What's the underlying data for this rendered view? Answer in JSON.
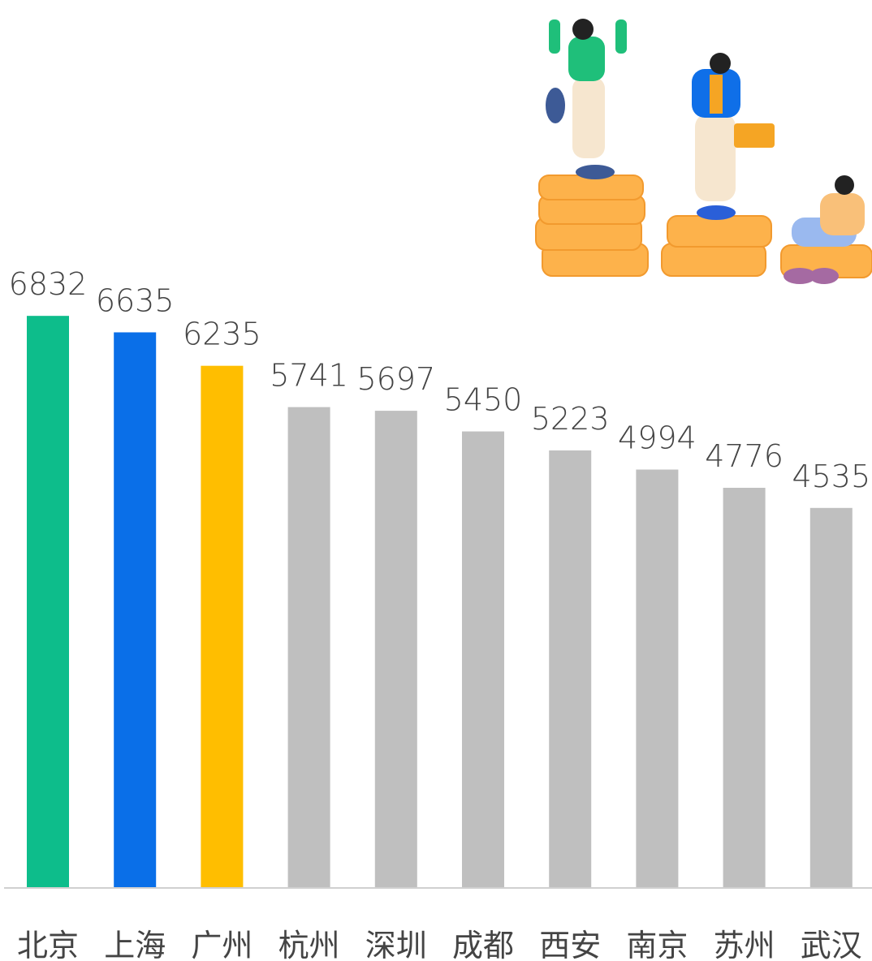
{
  "chart_data": {
    "type": "bar",
    "categories": [
      "北京",
      "上海",
      "广州",
      "杭州",
      "深圳",
      "成都",
      "西安",
      "南京",
      "苏州",
      "武汉"
    ],
    "values": [
      6832,
      6635,
      6235,
      5741,
      5697,
      5450,
      5223,
      4994,
      4776,
      4535
    ],
    "colors": [
      "#0dbd8b",
      "#0a6fe8",
      "#ffbe00",
      "#bfbfbf",
      "#bfbfbf",
      "#bfbfbf",
      "#bfbfbf",
      "#bfbfbf",
      "#bfbfbf",
      "#bfbfbf"
    ],
    "ylim": [
      0,
      10600
    ],
    "grid": false
  }
}
